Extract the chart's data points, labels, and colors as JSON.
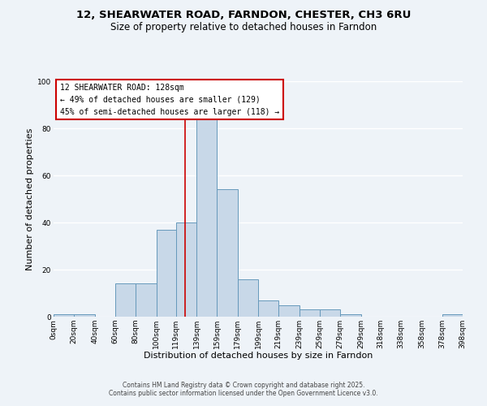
{
  "title_line1": "12, SHEARWATER ROAD, FARNDON, CHESTER, CH3 6RU",
  "title_line2": "Size of property relative to detached houses in Farndon",
  "bar_edges": [
    0,
    20,
    40,
    60,
    80,
    100,
    119,
    139,
    159,
    179,
    199,
    219,
    239,
    259,
    279,
    299,
    318,
    338,
    358,
    378,
    398
  ],
  "bar_heights": [
    1,
    1,
    0,
    14,
    14,
    37,
    40,
    84,
    54,
    16,
    7,
    5,
    3,
    3,
    1,
    0,
    0,
    0,
    0,
    1
  ],
  "bar_color": "#c8d8e8",
  "bar_edge_color": "#6699bb",
  "vline_x": 128,
  "vline_color": "#cc0000",
  "xlabel": "Distribution of detached houses by size in Farndon",
  "ylabel": "Number of detached properties",
  "xlim": [
    0,
    398
  ],
  "ylim": [
    0,
    100
  ],
  "yticks": [
    0,
    20,
    40,
    60,
    80,
    100
  ],
  "xtick_labels": [
    "0sqm",
    "20sqm",
    "40sqm",
    "60sqm",
    "80sqm",
    "100sqm",
    "119sqm",
    "139sqm",
    "159sqm",
    "179sqm",
    "199sqm",
    "219sqm",
    "239sqm",
    "259sqm",
    "279sqm",
    "299sqm",
    "318sqm",
    "338sqm",
    "358sqm",
    "378sqm",
    "398sqm"
  ],
  "xtick_positions": [
    0,
    20,
    40,
    60,
    80,
    100,
    119,
    139,
    159,
    179,
    199,
    219,
    239,
    259,
    279,
    299,
    318,
    338,
    358,
    378,
    398
  ],
  "annotation_title": "12 SHEARWATER ROAD: 128sqm",
  "annotation_line1": "← 49% of detached houses are smaller (129)",
  "annotation_line2": "45% of semi-detached houses are larger (118) →",
  "bg_color": "#eef3f8",
  "plot_bg_color": "#eef3f8",
  "footer_line1": "Contains HM Land Registry data © Crown copyright and database right 2025.",
  "footer_line2": "Contains public sector information licensed under the Open Government Licence v3.0.",
  "grid_color": "#ffffff",
  "title_fontsize": 9.5,
  "subtitle_fontsize": 8.5,
  "axis_label_fontsize": 8,
  "tick_fontsize": 6.5,
  "annotation_fontsize": 7,
  "footer_fontsize": 5.5
}
